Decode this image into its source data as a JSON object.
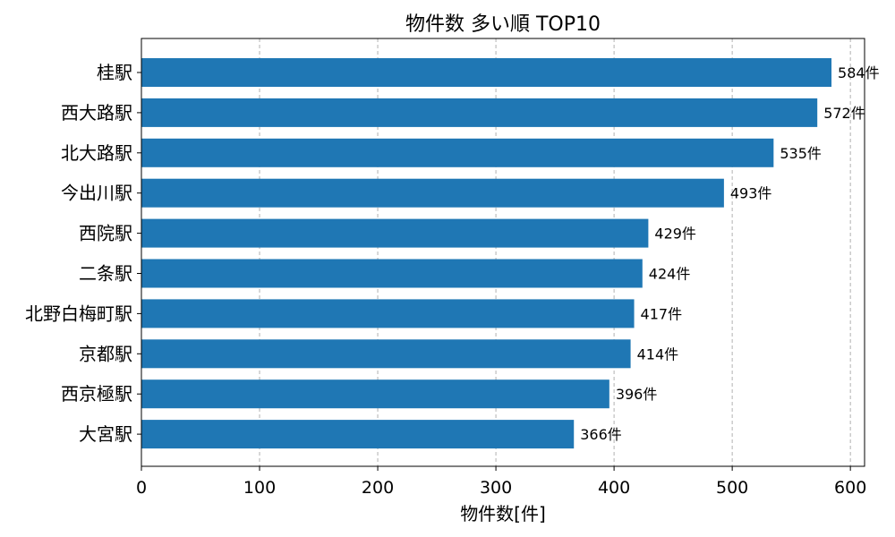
{
  "chart_data": {
    "type": "bar",
    "orientation": "horizontal",
    "title": "物件数 多い順 TOP10",
    "xlabel": "物件数[件]",
    "ylabel": "",
    "categories": [
      "桂駅",
      "西大路駅",
      "北大路駅",
      "今出川駅",
      "西院駅",
      "二条駅",
      "北野白梅町駅",
      "京都駅",
      "西京極駅",
      "大宮駅"
    ],
    "values": [
      584,
      572,
      535,
      493,
      429,
      424,
      417,
      414,
      396,
      366
    ],
    "value_suffix": "件",
    "xlim": [
      0,
      612
    ],
    "xticks": [
      0,
      100,
      200,
      300,
      400,
      500,
      600
    ],
    "grid": "x-dashed",
    "bar_color": "#1f77b4"
  }
}
